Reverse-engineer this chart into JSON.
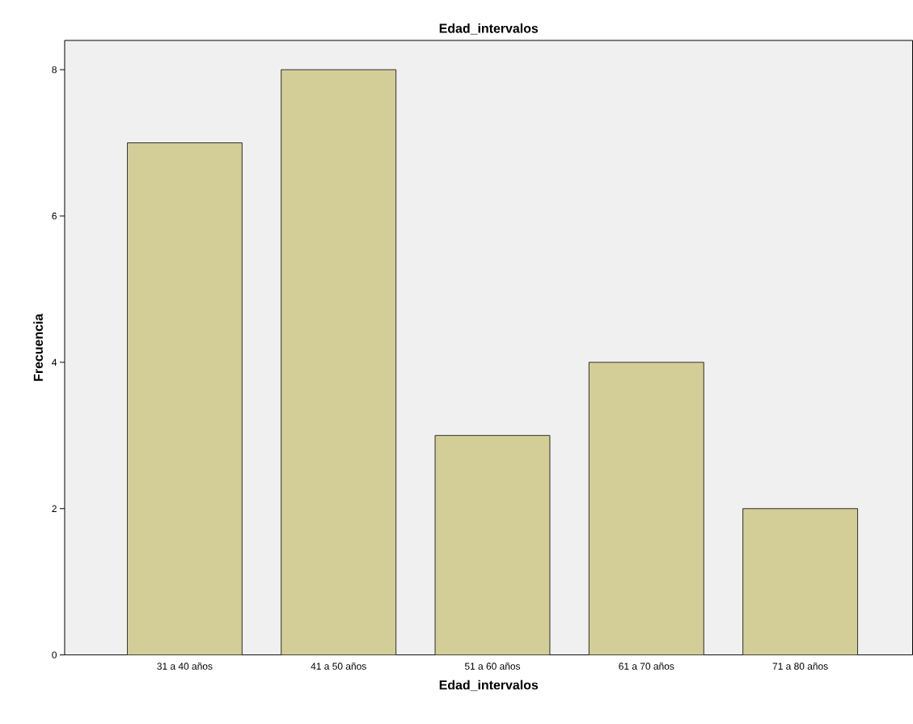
{
  "chart_data": {
    "type": "bar",
    "title": "Edad_intervalos",
    "xlabel": "Edad_intervalos",
    "ylabel": "Frecuencia",
    "categories": [
      "31 a 40 años",
      "41 a 50 años",
      "51 a 60 años",
      "61 a 70 años",
      "71 a 80 años"
    ],
    "values": [
      7,
      8,
      3,
      4,
      2
    ],
    "color": "#d3ce97",
    "ylim": [
      0,
      8.4
    ],
    "yticks": [
      0,
      2,
      4,
      6,
      8
    ],
    "grid": false
  }
}
